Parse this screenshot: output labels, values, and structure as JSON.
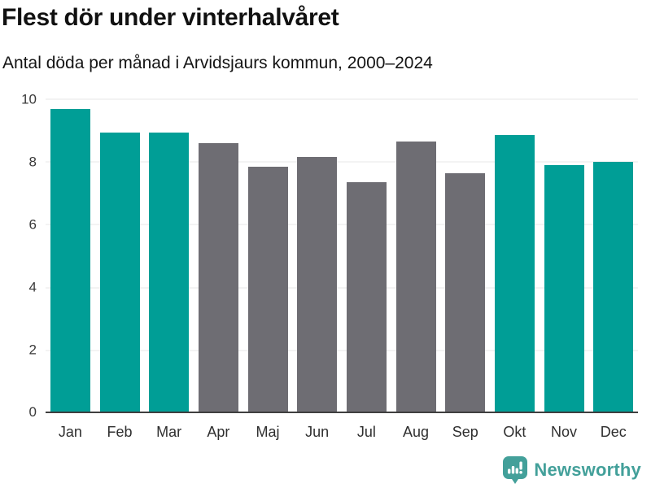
{
  "header": {
    "title": "Flest dör under vinterhalvåret",
    "subtitle": "Antal döda per månad i Arvidsjaurs kommun, 2000–2024"
  },
  "chart_data": {
    "type": "bar",
    "title": "Flest dör under vinterhalvåret",
    "subtitle": "Antal döda per månad i Arvidsjaurs kommun, 2000–2024",
    "categories": [
      "Jan",
      "Feb",
      "Mar",
      "Apr",
      "Maj",
      "Jun",
      "Jul",
      "Aug",
      "Sep",
      "Okt",
      "Nov",
      "Dec"
    ],
    "values": [
      9.7,
      8.95,
      8.95,
      8.6,
      7.85,
      8.15,
      7.35,
      8.65,
      7.65,
      8.85,
      7.9,
      8.0
    ],
    "bar_colors": [
      "#009E96",
      "#009E96",
      "#009E96",
      "#6E6D73",
      "#6E6D73",
      "#6E6D73",
      "#6E6D73",
      "#6E6D73",
      "#6E6D73",
      "#009E96",
      "#009E96",
      "#009E96"
    ],
    "highlight_color": "#009E96",
    "muted_color": "#6E6D73",
    "xlabel": "",
    "ylabel": "",
    "ylim": [
      0,
      10
    ],
    "yticks": [
      0,
      2,
      4,
      6,
      8,
      10
    ],
    "grid": true,
    "legend_position": "none"
  },
  "colors": {
    "axis_line": "#3f3f3f",
    "gridline": "#e7e7e7",
    "title_text": "#111111",
    "tick_text": "#3a3a3a",
    "logo_teal": "#43A09A"
  },
  "logo": {
    "text": "Newsworthy",
    "icon": "newsworthy-speech-bubble-chart-icon"
  }
}
